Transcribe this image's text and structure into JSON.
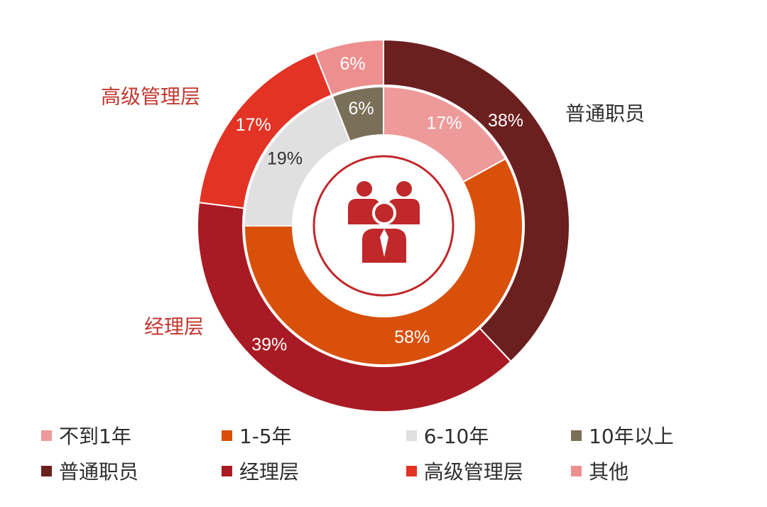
{
  "chart_data": {
    "type": "pie",
    "variant": "nested-donut",
    "title": "",
    "series": [
      {
        "ring": "inner",
        "categories": [
          "不到1年",
          "1-5年",
          "6-10年",
          "10年以上"
        ],
        "values": [
          17,
          58,
          19,
          6
        ],
        "labels": [
          "17%",
          "58%",
          "19%",
          "6%"
        ],
        "colors": [
          "#ee9a9a",
          "#d9500a",
          "#e0e0e0",
          "#7a6f58"
        ]
      },
      {
        "ring": "outer",
        "categories": [
          "普通职员",
          "经理层",
          "高级管理层",
          "其他"
        ],
        "values": [
          38,
          39,
          17,
          6
        ],
        "labels": [
          "38%",
          "39%",
          "17%",
          "6%"
        ],
        "colors": [
          "#6b1f1f",
          "#a81b24",
          "#e23325",
          "#ee8f8f"
        ]
      }
    ],
    "category_labels": [
      {
        "text": "普通职员",
        "color": "#2e2e2e"
      },
      {
        "text": "经理层",
        "color": "#c0382f"
      },
      {
        "text": "高级管理层",
        "color": "#c0382f"
      }
    ],
    "legend": {
      "placement": "bottom",
      "rows": [
        [
          {
            "label": "不到1年",
            "color": "#ee9a9a"
          },
          {
            "label": "1-5年",
            "color": "#d9500a"
          },
          {
            "label": "6-10年",
            "color": "#e0e0e0"
          },
          {
            "label": "10年以上",
            "color": "#7a6f58"
          }
        ],
        [
          {
            "label": "普通职员",
            "color": "#6b1f1f"
          },
          {
            "label": "经理层",
            "color": "#a81b24"
          },
          {
            "label": "高级管理层",
            "color": "#e23325"
          },
          {
            "label": "其他",
            "color": "#ee8f8f"
          }
        ]
      ]
    },
    "center_icon": "people-group-icon",
    "center_icon_color": "#c0282a"
  }
}
